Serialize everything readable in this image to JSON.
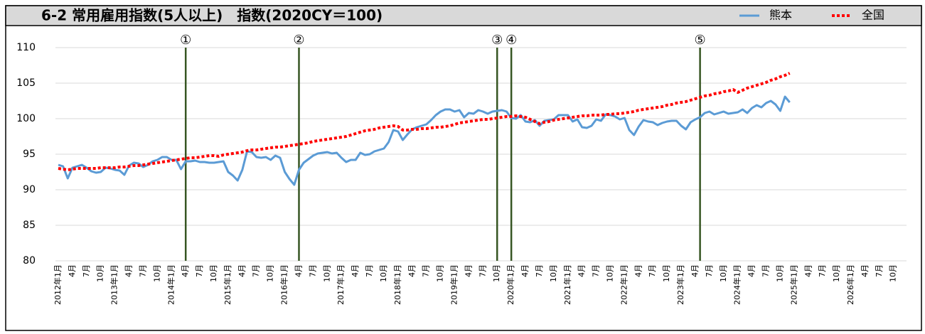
{
  "chart_data": {
    "type": "line",
    "title": "6-2 常用雇用指数(5人以上)　指数(2020CY＝100)",
    "categories": [
      "2012年1月",
      null,
      null,
      "4月",
      null,
      null,
      "7月",
      null,
      null,
      "10月",
      null,
      null,
      "2013年1月",
      null,
      null,
      "4月",
      null,
      null,
      "7月",
      null,
      null,
      "10月",
      null,
      null,
      "2014年1月",
      null,
      null,
      "4月",
      null,
      null,
      "7月",
      null,
      null,
      "10月",
      null,
      null,
      "2015年1月",
      null,
      null,
      "4月",
      null,
      null,
      "7月",
      null,
      null,
      "10月",
      null,
      null,
      "2016年1月",
      null,
      null,
      "4月",
      null,
      null,
      "7月",
      null,
      null,
      "10月",
      null,
      null,
      "2017年1月",
      null,
      null,
      "4月",
      null,
      null,
      "7月",
      null,
      null,
      "10月",
      null,
      null,
      "2018年1月",
      null,
      null,
      "4月",
      null,
      null,
      "7月",
      null,
      null,
      "10月",
      null,
      null,
      "2019年1月",
      null,
      null,
      "4月",
      null,
      null,
      "7月",
      null,
      null,
      "10月",
      null,
      null,
      "2020年1月",
      null,
      null,
      "4月",
      null,
      null,
      "7月",
      null,
      null,
      "10月",
      null,
      null,
      "2021年1月",
      null,
      null,
      "4月",
      null,
      null,
      "7月",
      null,
      null,
      "10月",
      null,
      null,
      "2022年1月",
      null,
      null,
      "4月",
      null,
      null,
      "7月",
      null,
      null,
      "10月",
      null,
      null,
      "2023年1月",
      null,
      null,
      "4月",
      null,
      null,
      "7月",
      null,
      null,
      "10月",
      null,
      null,
      "2024年1月",
      null,
      null,
      "4月",
      null,
      null,
      "7月",
      null,
      null,
      "10月",
      null,
      null,
      "2025年1月",
      null,
      null,
      "4月",
      null,
      null,
      "7月",
      null,
      null,
      "10月",
      null,
      null,
      "2026年1月",
      null,
      null,
      "4月",
      null,
      null,
      "7月",
      null,
      null,
      "10月",
      null,
      null
    ],
    "series": [
      {
        "name": "熊本",
        "color": "#5b9bd5",
        "style": "solid",
        "values": [
          93.5,
          93.3,
          91.6,
          93.1,
          93.3,
          93.5,
          93.1,
          92.6,
          92.4,
          92.5,
          93.1,
          93.0,
          92.8,
          92.7,
          92.1,
          93.4,
          93.8,
          93.7,
          93.2,
          93.5,
          94.0,
          94.2,
          94.6,
          94.6,
          94.2,
          94.2,
          92.9,
          94.0,
          94.0,
          94.1,
          93.9,
          93.9,
          93.8,
          93.8,
          93.9,
          94.0,
          92.5,
          92.0,
          91.3,
          92.8,
          95.4,
          95.3,
          94.6,
          94.5,
          94.6,
          94.2,
          94.8,
          94.5,
          92.5,
          91.5,
          90.7,
          92.8,
          93.8,
          94.3,
          94.8,
          95.1,
          95.2,
          95.3,
          95.1,
          95.2,
          94.5,
          93.9,
          94.2,
          94.2,
          95.2,
          94.9,
          95.0,
          95.4,
          95.6,
          95.8,
          96.7,
          98.4,
          98.2,
          97.0,
          97.8,
          98.5,
          98.8,
          99.0,
          99.2,
          99.8,
          100.5,
          101.0,
          101.3,
          101.3,
          101.0,
          101.2,
          100.2,
          100.8,
          100.7,
          101.2,
          101.0,
          100.7,
          101.0,
          101.1,
          101.2,
          101.0,
          100.1,
          100.0,
          100.5,
          99.6,
          99.5,
          99.8,
          99.0,
          99.7,
          99.8,
          99.9,
          100.5,
          100.5,
          100.5,
          99.6,
          99.9,
          98.8,
          98.7,
          99.0,
          99.9,
          99.7,
          100.6,
          100.5,
          100.3,
          99.9,
          100.1,
          98.4,
          97.7,
          98.9,
          99.8,
          99.6,
          99.5,
          99.1,
          99.4,
          99.6,
          99.7,
          99.7,
          99.0,
          98.5,
          99.5,
          99.9,
          100.2,
          100.8,
          101.0,
          100.6,
          100.8,
          101.0,
          100.7,
          100.8,
          100.9,
          101.3,
          100.8,
          101.5,
          101.9,
          101.6,
          102.2,
          102.5,
          102.0,
          101.1,
          103.1,
          102.3,
          null,
          null,
          null,
          null,
          null,
          null,
          null,
          null,
          null,
          null,
          null,
          null,
          null,
          null,
          null,
          null,
          null,
          null,
          null,
          null,
          null,
          null,
          null,
          null
        ]
      },
      {
        "name": "全国",
        "color": "#ff0000",
        "style": "dotted",
        "values": [
          93.0,
          92.9,
          92.8,
          92.9,
          93.0,
          93.0,
          93.0,
          93.0,
          93.0,
          93.1,
          93.1,
          93.1,
          93.1,
          93.2,
          93.2,
          93.3,
          93.4,
          93.4,
          93.5,
          93.6,
          93.7,
          93.8,
          93.9,
          94.0,
          94.1,
          94.2,
          94.3,
          94.4,
          94.5,
          94.5,
          94.6,
          94.7,
          94.8,
          94.8,
          94.7,
          94.9,
          95.0,
          95.1,
          95.2,
          95.3,
          95.5,
          95.6,
          95.6,
          95.7,
          95.8,
          95.9,
          96.0,
          96.0,
          96.1,
          96.2,
          96.3,
          96.4,
          96.5,
          96.6,
          96.8,
          96.9,
          97.0,
          97.1,
          97.2,
          97.3,
          97.4,
          97.5,
          97.7,
          97.9,
          98.1,
          98.3,
          98.4,
          98.5,
          98.7,
          98.8,
          98.9,
          99.0,
          98.9,
          98.4,
          98.4,
          98.5,
          98.5,
          98.6,
          98.6,
          98.7,
          98.8,
          98.8,
          98.9,
          99.0,
          99.2,
          99.4,
          99.5,
          99.6,
          99.7,
          99.8,
          99.9,
          99.9,
          100.0,
          100.1,
          100.2,
          100.3,
          100.3,
          100.4,
          100.3,
          100.2,
          99.9,
          99.6,
          99.3,
          99.5,
          99.6,
          99.8,
          99.9,
          100.0,
          100.1,
          100.2,
          100.3,
          100.4,
          100.4,
          100.5,
          100.5,
          100.5,
          100.6,
          100.6,
          100.7,
          100.7,
          100.8,
          100.9,
          101.0,
          101.2,
          101.3,
          101.4,
          101.5,
          101.6,
          101.7,
          101.9,
          102.0,
          102.2,
          102.3,
          102.4,
          102.6,
          102.8,
          103.0,
          103.2,
          103.3,
          103.5,
          103.6,
          103.8,
          103.9,
          104.1,
          103.7,
          104.0,
          104.3,
          104.5,
          104.7,
          104.9,
          105.1,
          105.4,
          105.6,
          105.9,
          106.1,
          106.4,
          null,
          null,
          null,
          null,
          null,
          null,
          null,
          null,
          null,
          null,
          null,
          null,
          null,
          null,
          null,
          null,
          null,
          null,
          null,
          null,
          null,
          null,
          null,
          null
        ]
      }
    ],
    "markers": [
      {
        "label": "①",
        "index": 27,
        "color": "#375623"
      },
      {
        "label": "②",
        "index": 51,
        "color": "#375623"
      },
      {
        "label": "③",
        "index": 93,
        "color": "#375623"
      },
      {
        "label": "④",
        "index": 96,
        "color": "#375623"
      },
      {
        "label": "⑤",
        "index": 136,
        "color": "#375623"
      }
    ],
    "ylim": [
      80,
      110
    ],
    "yticks": [
      80,
      85,
      90,
      95,
      100,
      105,
      110
    ],
    "grid": true,
    "legend": "top-right"
  }
}
